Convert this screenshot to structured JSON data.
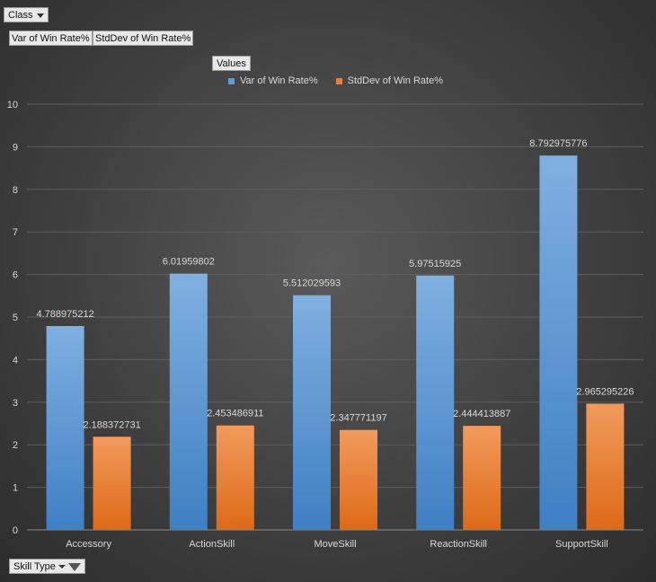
{
  "filters": {
    "class_label": "Class",
    "values_label": "Values",
    "skill_type_label": "Skill Type"
  },
  "value_buttons": [
    "Var of Win Rate%",
    "StdDev of Win Rate%"
  ],
  "colors": {
    "series1": "#5b9bd5",
    "series2": "#ed7d31",
    "text": "#d9d9d9",
    "grid": "#5f5f5f"
  },
  "chart_data": {
    "type": "bar",
    "title": "",
    "xlabel": "",
    "ylabel": "",
    "categories": [
      "Accessory",
      "ActionSkill",
      "MoveSkill",
      "ReactionSkill",
      "SupportSkill"
    ],
    "series": [
      {
        "name": "Var of Win Rate%",
        "values": [
          4.788975212,
          6.01959802,
          5.512029593,
          5.97515925,
          8.792975776
        ],
        "labels": [
          "4.788975212",
          "6.01959802",
          "5.512029593",
          "5.97515925",
          "8.792975776"
        ]
      },
      {
        "name": "StdDev of Win Rate%",
        "values": [
          2.188372731,
          2.453486911,
          2.347771197,
          2.444413887,
          2.965295226
        ],
        "labels": [
          "2.188372731",
          "2.453486911",
          "2.347771197",
          "2.444413887",
          "2.965295226"
        ]
      }
    ],
    "yticks": [
      "0",
      "1",
      "2",
      "3",
      "4",
      "5",
      "6",
      "7",
      "8",
      "9",
      "10"
    ],
    "ylim": [
      0,
      10
    ],
    "grid": true,
    "legend": "top-center"
  }
}
